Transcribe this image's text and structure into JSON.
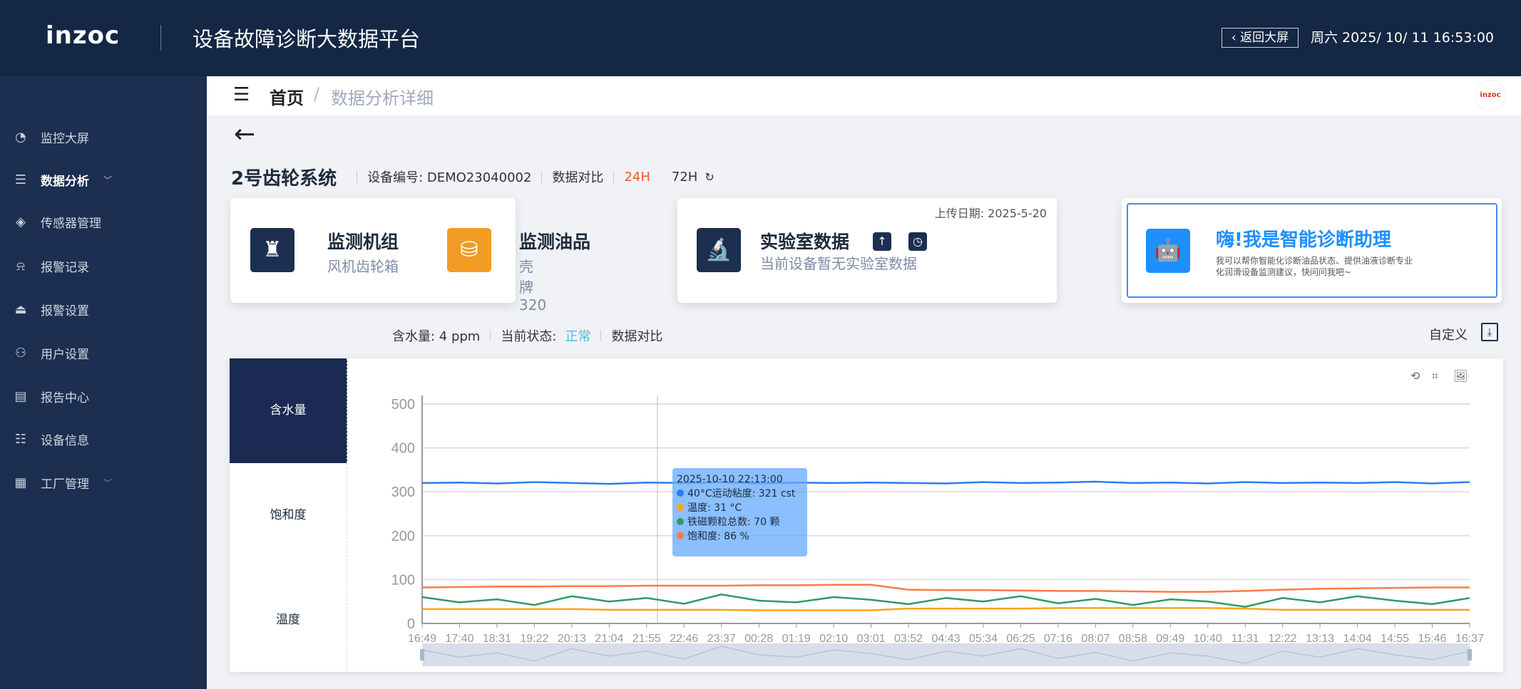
{
  "header": {
    "logo": "inzoc",
    "title": "设备故障诊断大数据平台",
    "back_button": "返回大屏",
    "datetime": "周六 2025/ 10/ 11 16:53:00"
  },
  "sidebar": {
    "items": [
      {
        "label": "监控大屏",
        "icon": "dashboard-gauge-icon"
      },
      {
        "label": "数据分析",
        "icon": "sliders-list-icon",
        "expandable": true,
        "active": true
      },
      {
        "label": "传感器管理",
        "icon": "layers-icon"
      },
      {
        "label": "报警记录",
        "icon": "alarm-light-icon"
      },
      {
        "label": "报警设置",
        "icon": "alarm-settings-icon"
      },
      {
        "label": "用户设置",
        "icon": "user-add-icon"
      },
      {
        "label": "报告中心",
        "icon": "report-icon"
      },
      {
        "label": "设备信息",
        "icon": "settings-sliders-icon"
      },
      {
        "label": "工厂管理",
        "icon": "grid-icon",
        "expandable": true
      }
    ]
  },
  "breadcrumb": {
    "home": "首页",
    "separator": "/",
    "current": "数据分析详细",
    "avatar": "inzoc"
  },
  "device": {
    "name": "2号齿轮系统",
    "code_label": "设备编号: DEMO23040002",
    "compare": "数据对比",
    "range_24": "24H",
    "range_72": "72H",
    "active_range": "24H"
  },
  "cards": {
    "unit_title": "监测机组",
    "unit_value": "风机齿轮箱",
    "oil_title": "监测油品",
    "oil_value": "壳牌320",
    "lab_title": "实验室数据",
    "lab_desc": "当前设备暂无实验室数据",
    "upload_date": "上传日期: 2025-5-20",
    "assistant_title": "嗨!我是智能诊断助理",
    "assistant_desc": "我可以帮你智能化诊断油品状态、提供油液诊断专业化润滑设备监测建议，快问问我吧~"
  },
  "status": {
    "water": "含水量: 4 ppm",
    "state_label": "当前状态:",
    "state_value": "正常",
    "compare": "数据对比",
    "custom": "自定义"
  },
  "tabs": [
    "含水量",
    "饱和度",
    "温度"
  ],
  "colors": {
    "header": "#142744",
    "sidebar": "#1c2f50",
    "accent_orange": "#f05a23",
    "viscosity": "#2f7bf5",
    "temperature": "#ffa31a",
    "iron": "#2e9b62",
    "saturation": "#ff7a45"
  },
  "tooltip": {
    "time": "2025-10-10 22:13:00",
    "rows": [
      "40°C运动粘度: 321 cst",
      "温度: 31 °C",
      "铁磁颗粒总数: 70 颗",
      "饱和度: 86 %"
    ]
  },
  "chart_data": {
    "type": "line",
    "ylim": [
      0,
      500
    ],
    "yticks": [
      0,
      100,
      200,
      300,
      400,
      500
    ],
    "grid": true,
    "categories": [
      "16:49",
      "17:40",
      "18:31",
      "19:22",
      "20:13",
      "21:04",
      "21:55",
      "22:46",
      "23:37",
      "00:28",
      "01:19",
      "02:10",
      "03:01",
      "03:52",
      "04:43",
      "05:34",
      "06:25",
      "07:16",
      "08:07",
      "08:58",
      "09:49",
      "10:40",
      "11:31",
      "12:22",
      "13:13",
      "14:04",
      "14:55",
      "15:46",
      "16:37"
    ],
    "series": [
      {
        "name": "40°C运动粘度",
        "unit": "cst",
        "values": [
          320,
          321,
          319,
          322,
          320,
          318,
          321,
          320,
          322,
          319,
          321,
          320,
          321,
          320,
          319,
          322,
          320,
          321,
          323,
          320,
          321,
          319,
          322,
          320,
          321,
          320,
          322,
          319,
          322
        ]
      },
      {
        "name": "温度",
        "unit": "°C",
        "values": [
          33,
          33,
          33,
          33,
          33,
          31,
          31,
          31,
          31,
          30,
          30,
          30,
          30,
          34,
          34,
          34,
          34,
          35,
          35,
          35,
          35,
          35,
          34,
          31,
          31,
          31,
          31,
          31,
          31
        ]
      },
      {
        "name": "铁磁颗粒总数",
        "unit": "颗",
        "values": [
          60,
          48,
          55,
          42,
          62,
          50,
          58,
          45,
          66,
          52,
          48,
          60,
          54,
          44,
          58,
          50,
          62,
          46,
          56,
          42,
          55,
          50,
          38,
          58,
          48,
          62,
          52,
          44,
          58
        ]
      },
      {
        "name": "饱和度",
        "unit": "%",
        "values": [
          82,
          83,
          84,
          84,
          85,
          85,
          86,
          86,
          86,
          87,
          87,
          88,
          88,
          77,
          76,
          76,
          75,
          74,
          74,
          73,
          72,
          72,
          74,
          77,
          79,
          80,
          81,
          82,
          82
        ]
      }
    ]
  }
}
